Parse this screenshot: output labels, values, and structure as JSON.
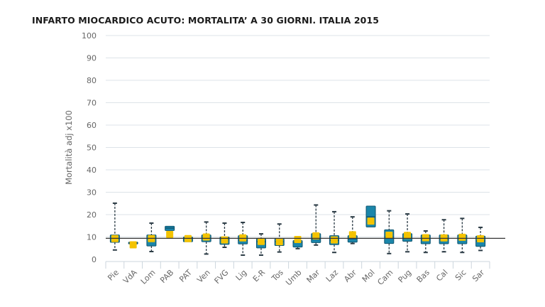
{
  "title": "INFARTO MIOCARDICO ACUTO: MORTALITA’ A 30 GIORNI. ITALIA 2015",
  "colors": {
    "box": "#1b86aa",
    "box_border": "#0f5570",
    "mean": "#f4c300",
    "whisker": "#2a3a44",
    "reference": "#333333",
    "grid": "#dde3e8"
  },
  "chart_data": {
    "type": "boxplot",
    "title": "INFARTO MIOCARDICO ACUTO: MORTALITA’ A 30 GIORNI. ITALIA 2015",
    "ylabel": "Mortalità adj x100",
    "xlabel": "",
    "ylim": [
      0,
      100
    ],
    "yticks": [
      0,
      10,
      20,
      30,
      40,
      50,
      60,
      70,
      80,
      90,
      100
    ],
    "grid": true,
    "reference_line": 9.4,
    "categories": [
      "Pie",
      "VdA",
      "Lom",
      "PAB",
      "PAT",
      "Ven",
      "FVG",
      "Lig",
      "E-R",
      "Tos",
      "Umb",
      "Mar",
      "Laz",
      "Abr",
      "Mol",
      "Cam",
      "Pug",
      "Bas",
      "Cal",
      "Sic",
      "Sar"
    ],
    "boxes": [
      {
        "min": 4.2,
        "q1": 7.6,
        "median": 9.3,
        "q3": 10.9,
        "max": 25.1,
        "mean": 9.3
      },
      {
        "min": 6.9,
        "q1": 6.9,
        "median": 7.3,
        "q3": 7.7,
        "max": 7.7,
        "mean": 6.5
      },
      {
        "min": 3.5,
        "q1": 6.0,
        "median": 9.2,
        "q3": 10.9,
        "max": 16.2,
        "mean": 9.3
      },
      {
        "min": 12.9,
        "q1": 12.9,
        "median": 14.0,
        "q3": 14.8,
        "max": 14.8,
        "mean": 11.1
      },
      {
        "min": 7.9,
        "q1": 7.9,
        "median": 9.3,
        "q3": 10.0,
        "max": 10.0,
        "mean": 9.3
      },
      {
        "min": 2.4,
        "q1": 7.9,
        "median": 9.5,
        "q3": 10.9,
        "max": 16.7,
        "mean": 10.0
      },
      {
        "min": 5.4,
        "q1": 6.7,
        "median": 9.0,
        "q3": 10.0,
        "max": 16.2,
        "mean": 8.7
      },
      {
        "min": 1.9,
        "q1": 6.9,
        "median": 8.5,
        "q3": 10.6,
        "max": 16.5,
        "mean": 9.6
      },
      {
        "min": 1.9,
        "q1": 5.1,
        "median": 7.9,
        "q3": 9.2,
        "max": 11.4,
        "mean": 8.0
      },
      {
        "min": 3.3,
        "q1": 6.2,
        "median": 7.9,
        "q3": 9.2,
        "max": 15.8,
        "mean": 7.9
      },
      {
        "min": 4.8,
        "q1": 5.5,
        "median": 7.6,
        "q3": 8.4,
        "max": 8.4,
        "mean": 8.9
      },
      {
        "min": 6.4,
        "q1": 7.5,
        "median": 9.0,
        "q3": 11.5,
        "max": 24.3,
        "mean": 10.5
      },
      {
        "min": 3.1,
        "q1": 6.6,
        "median": 8.5,
        "q3": 10.6,
        "max": 21.3,
        "mean": 8.7
      },
      {
        "min": 7.1,
        "q1": 7.7,
        "median": 9.2,
        "q3": 10.6,
        "max": 19.0,
        "mean": 11.0
      },
      {
        "min": 14.5,
        "q1": 14.5,
        "median": 19.0,
        "q3": 23.8,
        "max": 23.8,
        "mean": 17.1
      },
      {
        "min": 2.6,
        "q1": 7.1,
        "median": 10.0,
        "q3": 13.2,
        "max": 21.7,
        "mean": 10.8
      },
      {
        "min": 3.4,
        "q1": 8.1,
        "median": 9.4,
        "q3": 11.5,
        "max": 20.3,
        "mean": 10.7
      },
      {
        "min": 3.1,
        "q1": 7.0,
        "median": 9.0,
        "q3": 10.9,
        "max": 12.7,
        "mean": 9.7
      },
      {
        "min": 3.4,
        "q1": 7.0,
        "median": 9.0,
        "q3": 10.9,
        "max": 17.7,
        "mean": 9.6
      },
      {
        "min": 3.1,
        "q1": 7.0,
        "median": 9.2,
        "q3": 10.9,
        "max": 18.3,
        "mean": 9.9
      },
      {
        "min": 4.0,
        "q1": 5.8,
        "median": 8.2,
        "q3": 10.4,
        "max": 14.3,
        "mean": 9.2
      }
    ]
  }
}
